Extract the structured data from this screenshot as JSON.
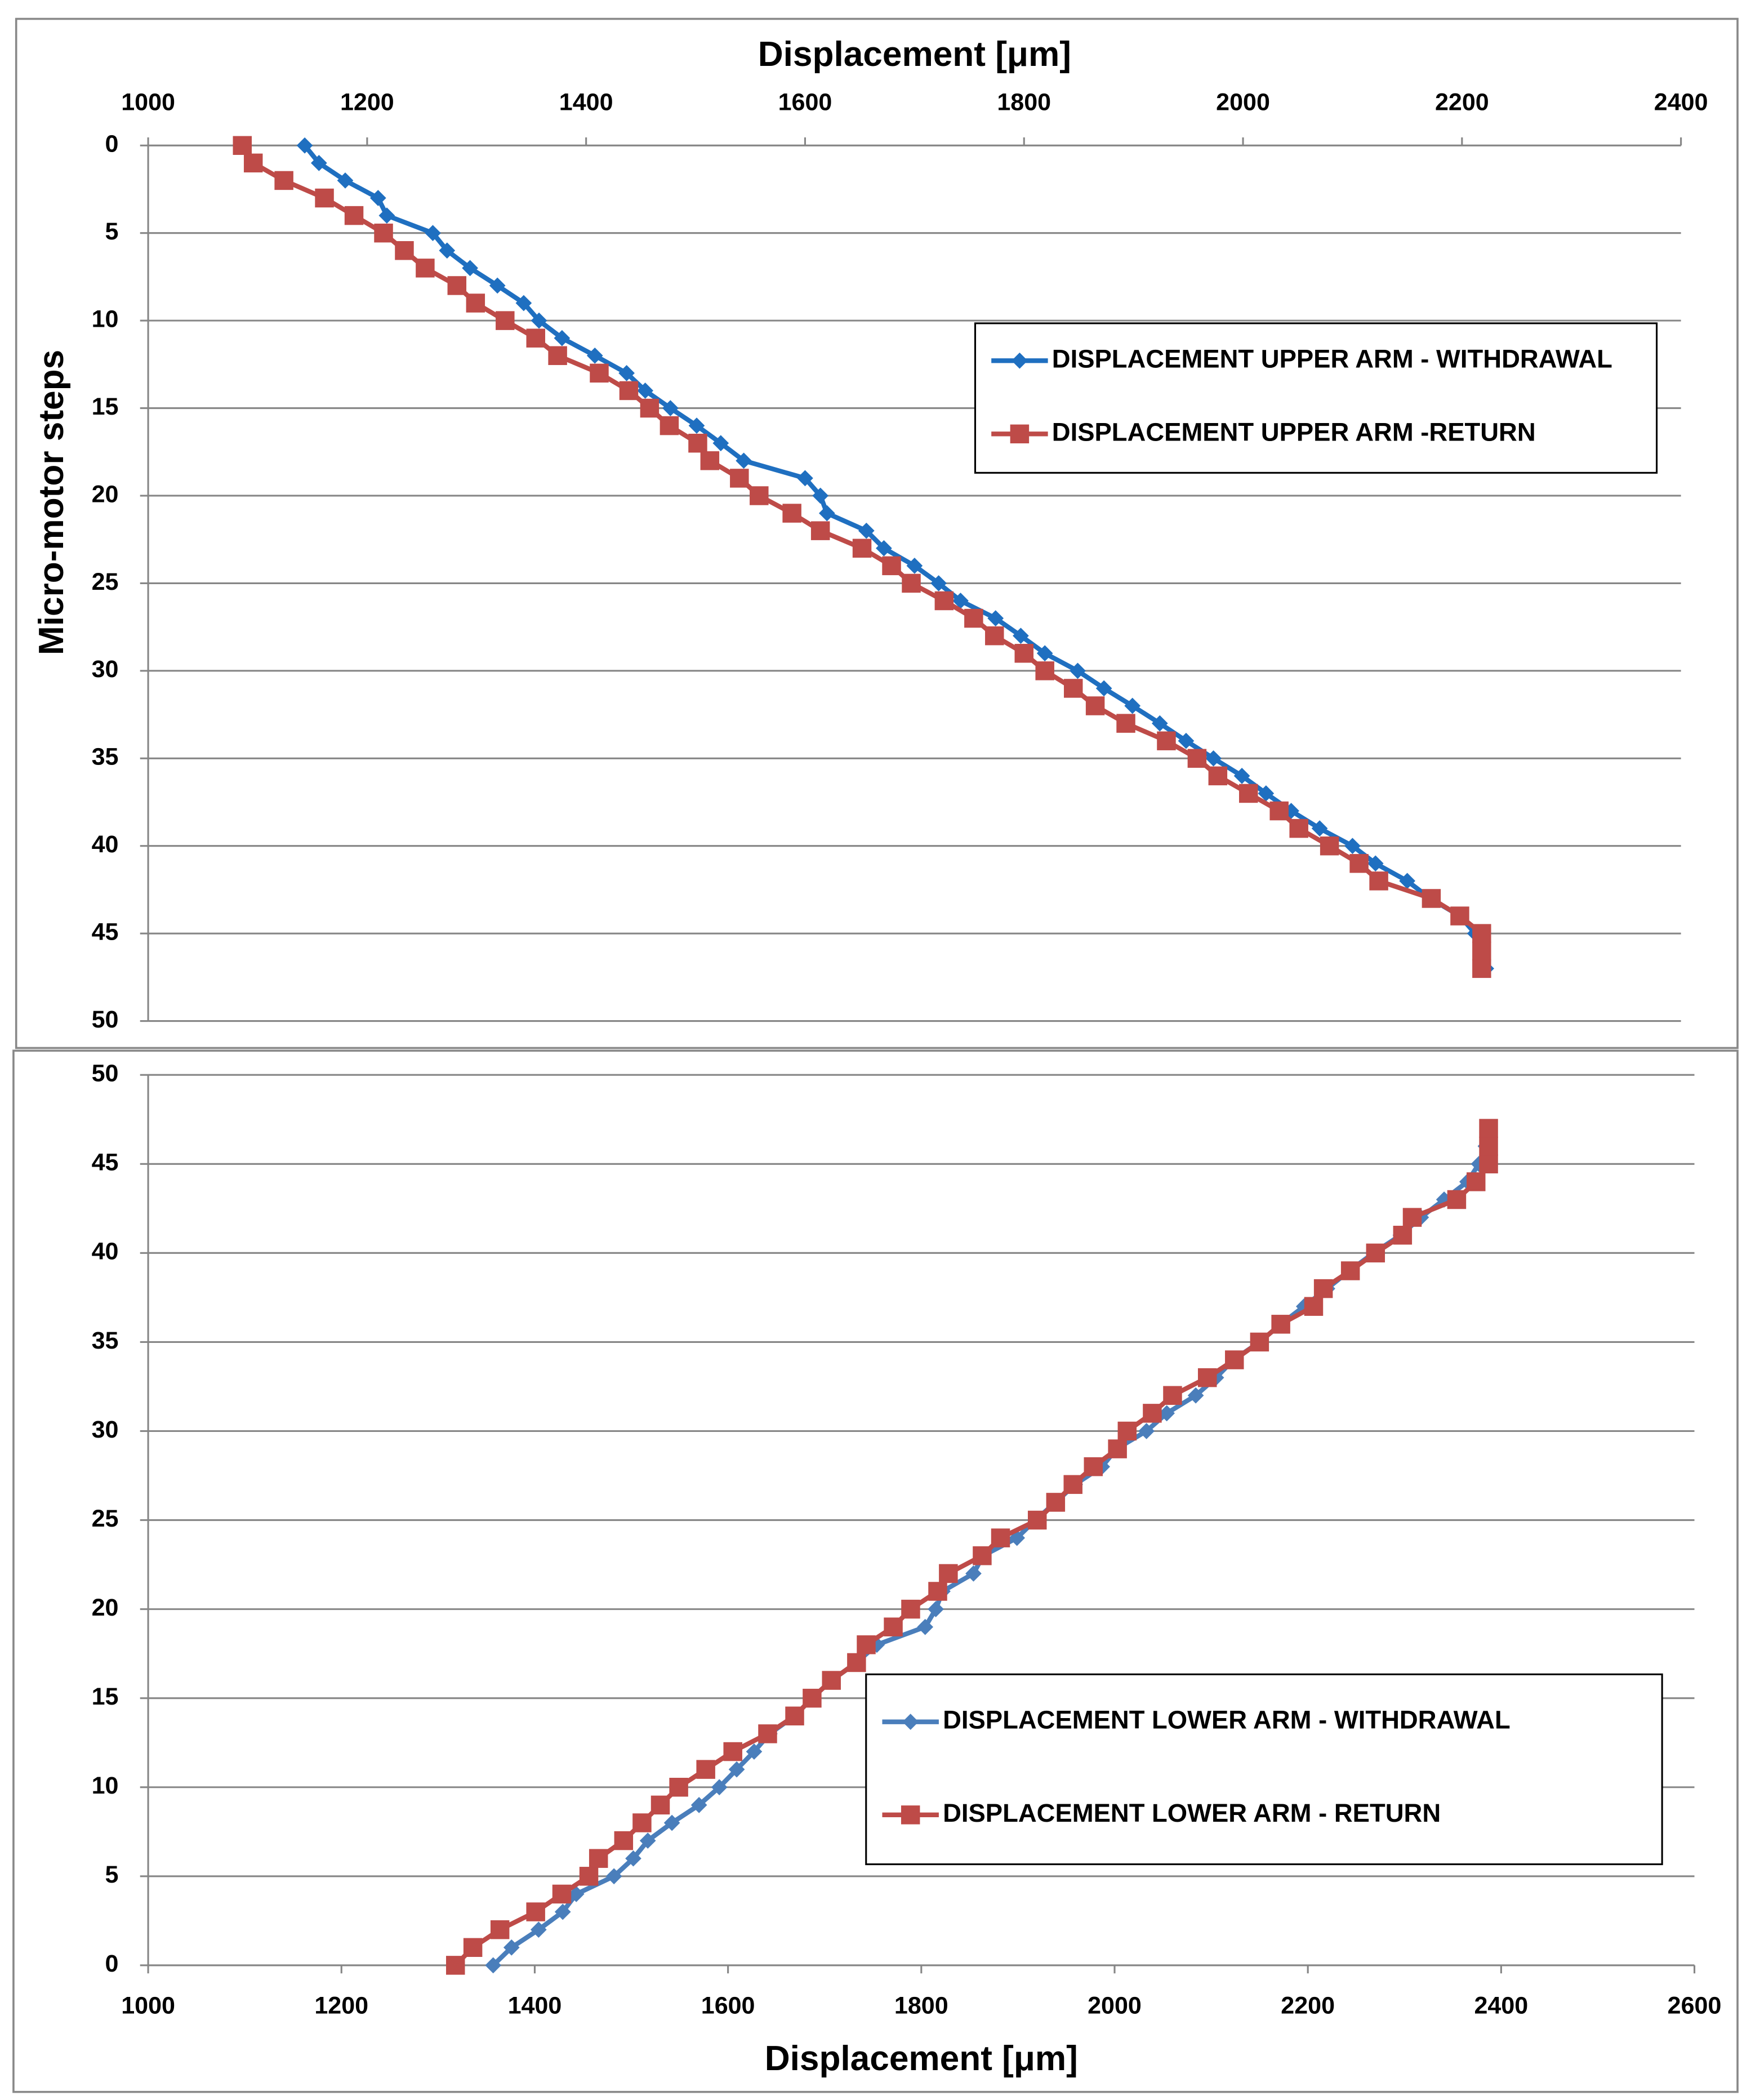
{
  "chart_data": [
    {
      "type": "line",
      "x_label": "Displacement [μm]",
      "x_axis_position": "top",
      "y_label": "Micro-motor steps",
      "y_inverted": true,
      "xlim": [
        1000,
        2400
      ],
      "xticks": [
        1000,
        1200,
        1400,
        1600,
        1800,
        2000,
        2200,
        2400
      ],
      "ylim": [
        0,
        50
      ],
      "yticks": [
        0,
        5,
        10,
        15,
        20,
        25,
        30,
        35,
        40,
        45,
        50
      ],
      "grid": true,
      "legend": "upper right",
      "series": [
        {
          "name": "DISPLACEMENT UPPER ARM - WITHDRAWAL",
          "color": "#1f6fc0",
          "marker": "diamond",
          "x": [
            1143,
            1156,
            1180,
            1210,
            1218,
            1260,
            1273,
            1294,
            1319,
            1343,
            1357,
            1378,
            1408,
            1437,
            1454,
            1477,
            1501,
            1523,
            1544,
            1600,
            1614,
            1620,
            1656,
            1672,
            1700,
            1722,
            1742,
            1774,
            1797,
            1819,
            1849,
            1873,
            1899,
            1924,
            1948,
            1973,
            1999,
            2021,
            2044,
            2070,
            2100,
            2121,
            2150,
            2171,
            2198,
            2212,
            2219,
            2222
          ],
          "values": [
            0,
            1,
            2,
            3,
            4,
            5,
            6,
            7,
            8,
            9,
            10,
            11,
            12,
            13,
            14,
            15,
            16,
            17,
            18,
            19,
            20,
            21,
            22,
            23,
            24,
            25,
            26,
            27,
            28,
            29,
            30,
            31,
            32,
            33,
            34,
            35,
            36,
            37,
            38,
            39,
            40,
            41,
            42,
            43,
            44,
            45,
            46,
            47
          ]
        },
        {
          "name": "DISPLACEMENT UPPER ARM -RETURN",
          "color": "#be4b48",
          "marker": "square",
          "x": [
            1086,
            1096,
            1124,
            1161,
            1188,
            1215,
            1234,
            1253,
            1282,
            1299,
            1326,
            1354,
            1374,
            1412,
            1439,
            1458,
            1476,
            1502,
            1513,
            1540,
            1558,
            1588,
            1614,
            1652,
            1679,
            1697,
            1727,
            1754,
            1773,
            1800,
            1819,
            1845,
            1865,
            1893,
            1930,
            1958,
            1977,
            2005,
            2033,
            2051,
            2079,
            2106,
            2124,
            2172,
            2198,
            2218,
            2218,
            2218
          ],
          "values": [
            0,
            1,
            2,
            3,
            4,
            5,
            6,
            7,
            8,
            9,
            10,
            11,
            12,
            13,
            14,
            15,
            16,
            17,
            18,
            19,
            20,
            21,
            22,
            23,
            24,
            25,
            26,
            27,
            28,
            29,
            30,
            31,
            32,
            33,
            34,
            35,
            36,
            37,
            38,
            39,
            40,
            41,
            42,
            43,
            44,
            45,
            46,
            47
          ]
        }
      ]
    },
    {
      "type": "line",
      "x_label": "Displacement [μm]",
      "x_axis_position": "bottom",
      "y_inverted": false,
      "xlim": [
        1000,
        2600
      ],
      "xticks": [
        1000,
        1200,
        1400,
        1600,
        1800,
        2000,
        2200,
        2400,
        2600
      ],
      "ylim": [
        0,
        50
      ],
      "yticks": [
        0,
        5,
        10,
        15,
        20,
        25,
        30,
        35,
        40,
        45,
        50
      ],
      "grid": true,
      "legend": "lower right",
      "series": [
        {
          "name": "DISPLACEMENT LOWER ARM - WITHDRAWAL",
          "color": "#4a7ebb",
          "marker": "diamond",
          "x": [
            1357,
            1376,
            1404,
            1429,
            1443,
            1482,
            1502,
            1517,
            1542,
            1570,
            1591,
            1609,
            1627,
            1643,
            1669,
            1687,
            1707,
            1733,
            1754,
            1804,
            1815,
            1822,
            1854,
            1864,
            1899,
            1918,
            1939,
            1959,
            1987,
            2002,
            2033,
            2054,
            2084,
            2105,
            2123,
            2150,
            2172,
            2196,
            2220,
            2243,
            2268,
            2296,
            2317,
            2341,
            2365,
            2377,
            2384,
            2387
          ],
          "values": [
            0,
            1,
            2,
            3,
            4,
            5,
            6,
            7,
            8,
            9,
            10,
            11,
            12,
            13,
            14,
            15,
            16,
            17,
            18,
            19,
            20,
            21,
            22,
            23,
            24,
            25,
            26,
            27,
            28,
            29,
            30,
            31,
            32,
            33,
            34,
            35,
            36,
            37,
            38,
            39,
            40,
            41,
            42,
            43,
            44,
            45,
            46,
            47
          ]
        },
        {
          "name": "DISPLACEMENT LOWER ARM - RETURN",
          "color": "#be4b48",
          "marker": "square",
          "x": [
            1318,
            1336,
            1364,
            1401,
            1428,
            1456,
            1466,
            1492,
            1511,
            1530,
            1549,
            1577,
            1605,
            1641,
            1669,
            1687,
            1707,
            1733,
            1743,
            1771,
            1789,
            1817,
            1828,
            1863,
            1882,
            1920,
            1939,
            1957,
            1978,
            2003,
            2013,
            2039,
            2060,
            2096,
            2124,
            2150,
            2172,
            2206,
            2216,
            2244,
            2270,
            2298,
            2308,
            2354,
            2374,
            2387,
            2387,
            2387
          ],
          "values": [
            0,
            1,
            2,
            3,
            4,
            5,
            6,
            7,
            8,
            9,
            10,
            11,
            12,
            13,
            14,
            15,
            16,
            17,
            18,
            19,
            20,
            21,
            22,
            23,
            24,
            25,
            26,
            27,
            28,
            29,
            30,
            31,
            32,
            33,
            34,
            35,
            36,
            37,
            38,
            39,
            40,
            41,
            42,
            43,
            44,
            45,
            46,
            47
          ]
        }
      ]
    }
  ]
}
